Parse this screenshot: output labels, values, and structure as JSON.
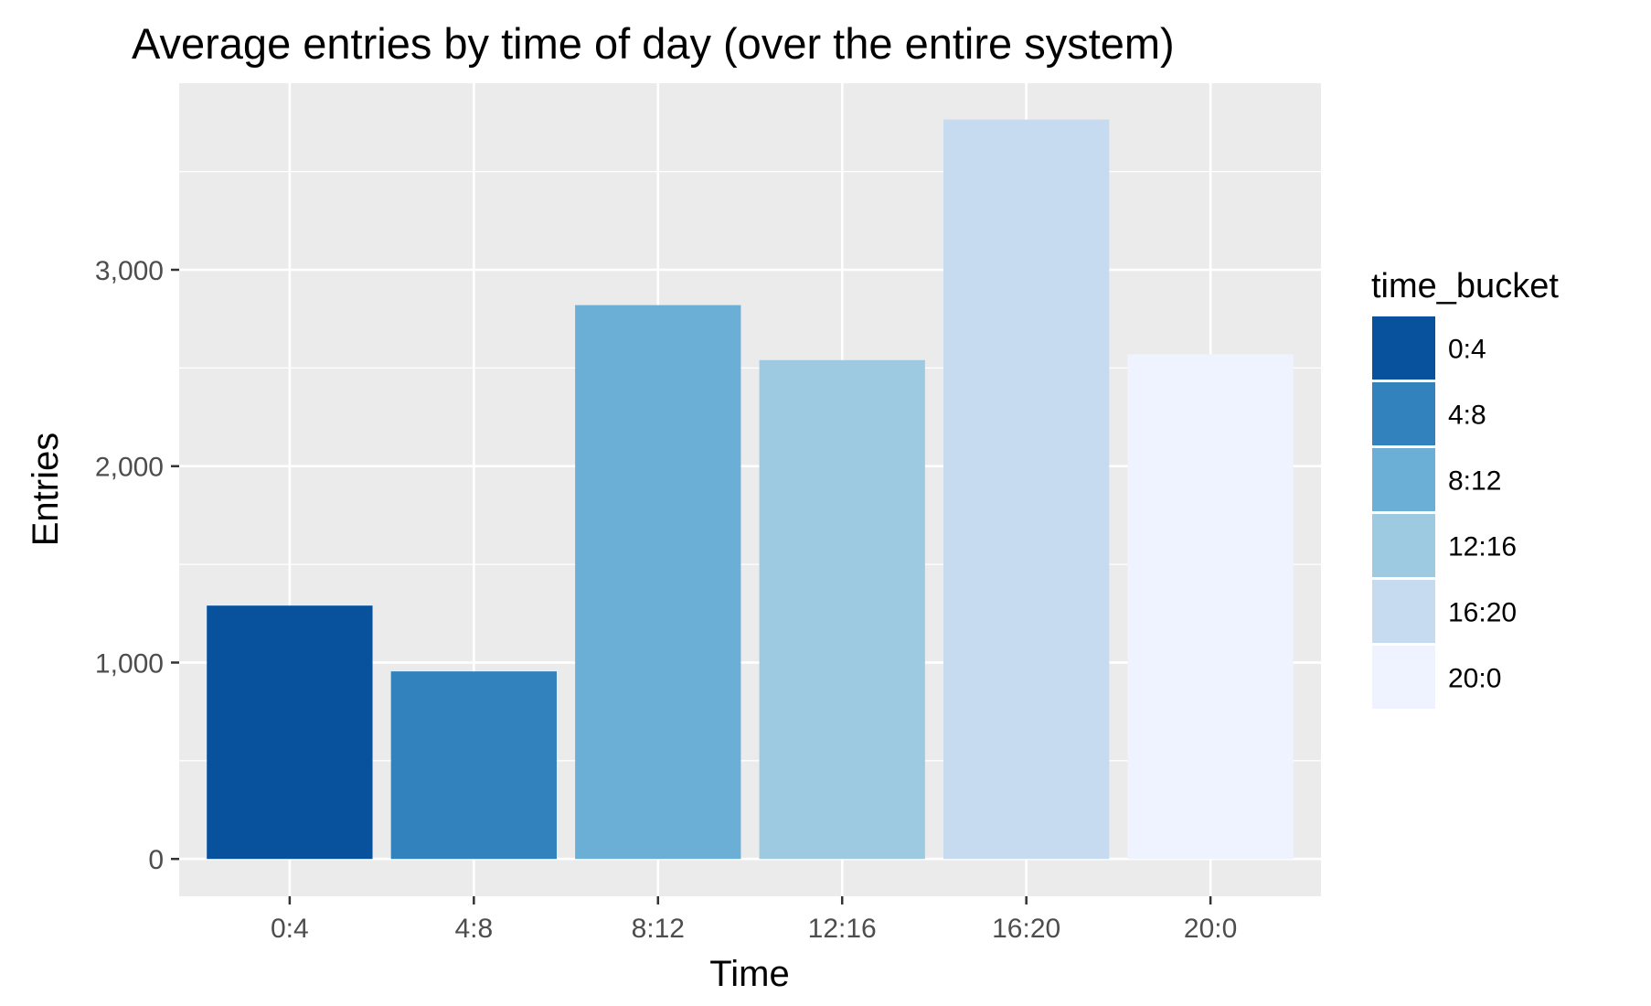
{
  "chart_data": {
    "type": "bar",
    "title": "Average entries by time of day (over the entire system)",
    "xlabel": "Time",
    "ylabel": "Entries",
    "categories": [
      "0:4",
      "4:8",
      "8:12",
      "12:16",
      "16:20",
      "20:0"
    ],
    "values": [
      1290,
      955,
      2820,
      2540,
      3765,
      2570
    ],
    "colors": [
      "#08519c",
      "#3182bd",
      "#6baed6",
      "#9ecae1",
      "#c6dbef",
      "#eff3ff"
    ],
    "ylim": [
      -190,
      3950
    ],
    "yticks": [
      0,
      1000,
      2000,
      3000
    ],
    "ytick_labels": [
      "0",
      "1,000",
      "2,000",
      "3,000"
    ],
    "grid": true,
    "panel_background": "#ebebeb",
    "legend": {
      "title": "time_bucket",
      "position": "right",
      "entries": [
        "0:4",
        "4:8",
        "8:12",
        "12:16",
        "16:20",
        "20:0"
      ]
    }
  }
}
